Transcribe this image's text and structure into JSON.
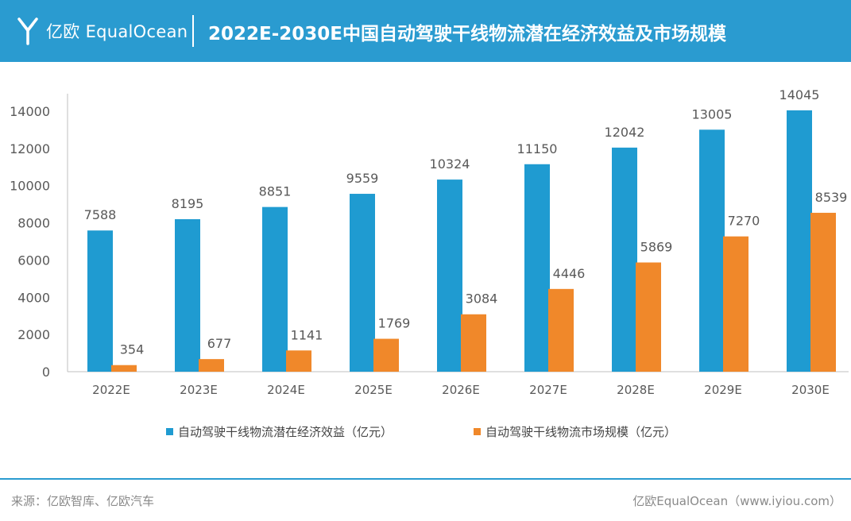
{
  "header": {
    "logo_text": "亿欧 EqualOcean",
    "title": "2022E-2030E中国自动驾驶干线物流潜在经济效益及市场规模"
  },
  "colors": {
    "header_bg": "#2a9bd0",
    "series_blue": "#1f9bd1",
    "series_orange": "#f0882a"
  },
  "chart_data": {
    "type": "bar",
    "title": "2022E-2030E中国自动驾驶干线物流潜在经济效益及市场规模",
    "categories": [
      "2022E",
      "2023E",
      "2024E",
      "2025E",
      "2026E",
      "2027E",
      "2028E",
      "2029E",
      "2030E"
    ],
    "series": [
      {
        "name": "自动驾驶干线物流潜在经济效益（亿元）",
        "color": "#1f9bd1",
        "values": [
          7588,
          8195,
          8851,
          9559,
          10324,
          11150,
          12042,
          13005,
          14045
        ]
      },
      {
        "name": "自动驾驶干线物流市场规模（亿元）",
        "color": "#f0882a",
        "values": [
          354,
          677,
          1141,
          1769,
          3084,
          4446,
          5869,
          7270,
          8539
        ]
      }
    ],
    "yticks": [
      0,
      2000,
      4000,
      6000,
      8000,
      10000,
      12000,
      14000
    ],
    "ylim": [
      0,
      15000
    ],
    "grid": false,
    "legend": "bottom"
  },
  "legend": {
    "series1_label": "自动驾驶干线物流潜在经济效益（亿元）",
    "series2_label": "自动驾驶干线物流市场规模（亿元）"
  },
  "footer": {
    "source": "来源：亿欧智库、亿欧汽车",
    "credit": "亿欧EqualOcean（www.iyiou.com）"
  }
}
